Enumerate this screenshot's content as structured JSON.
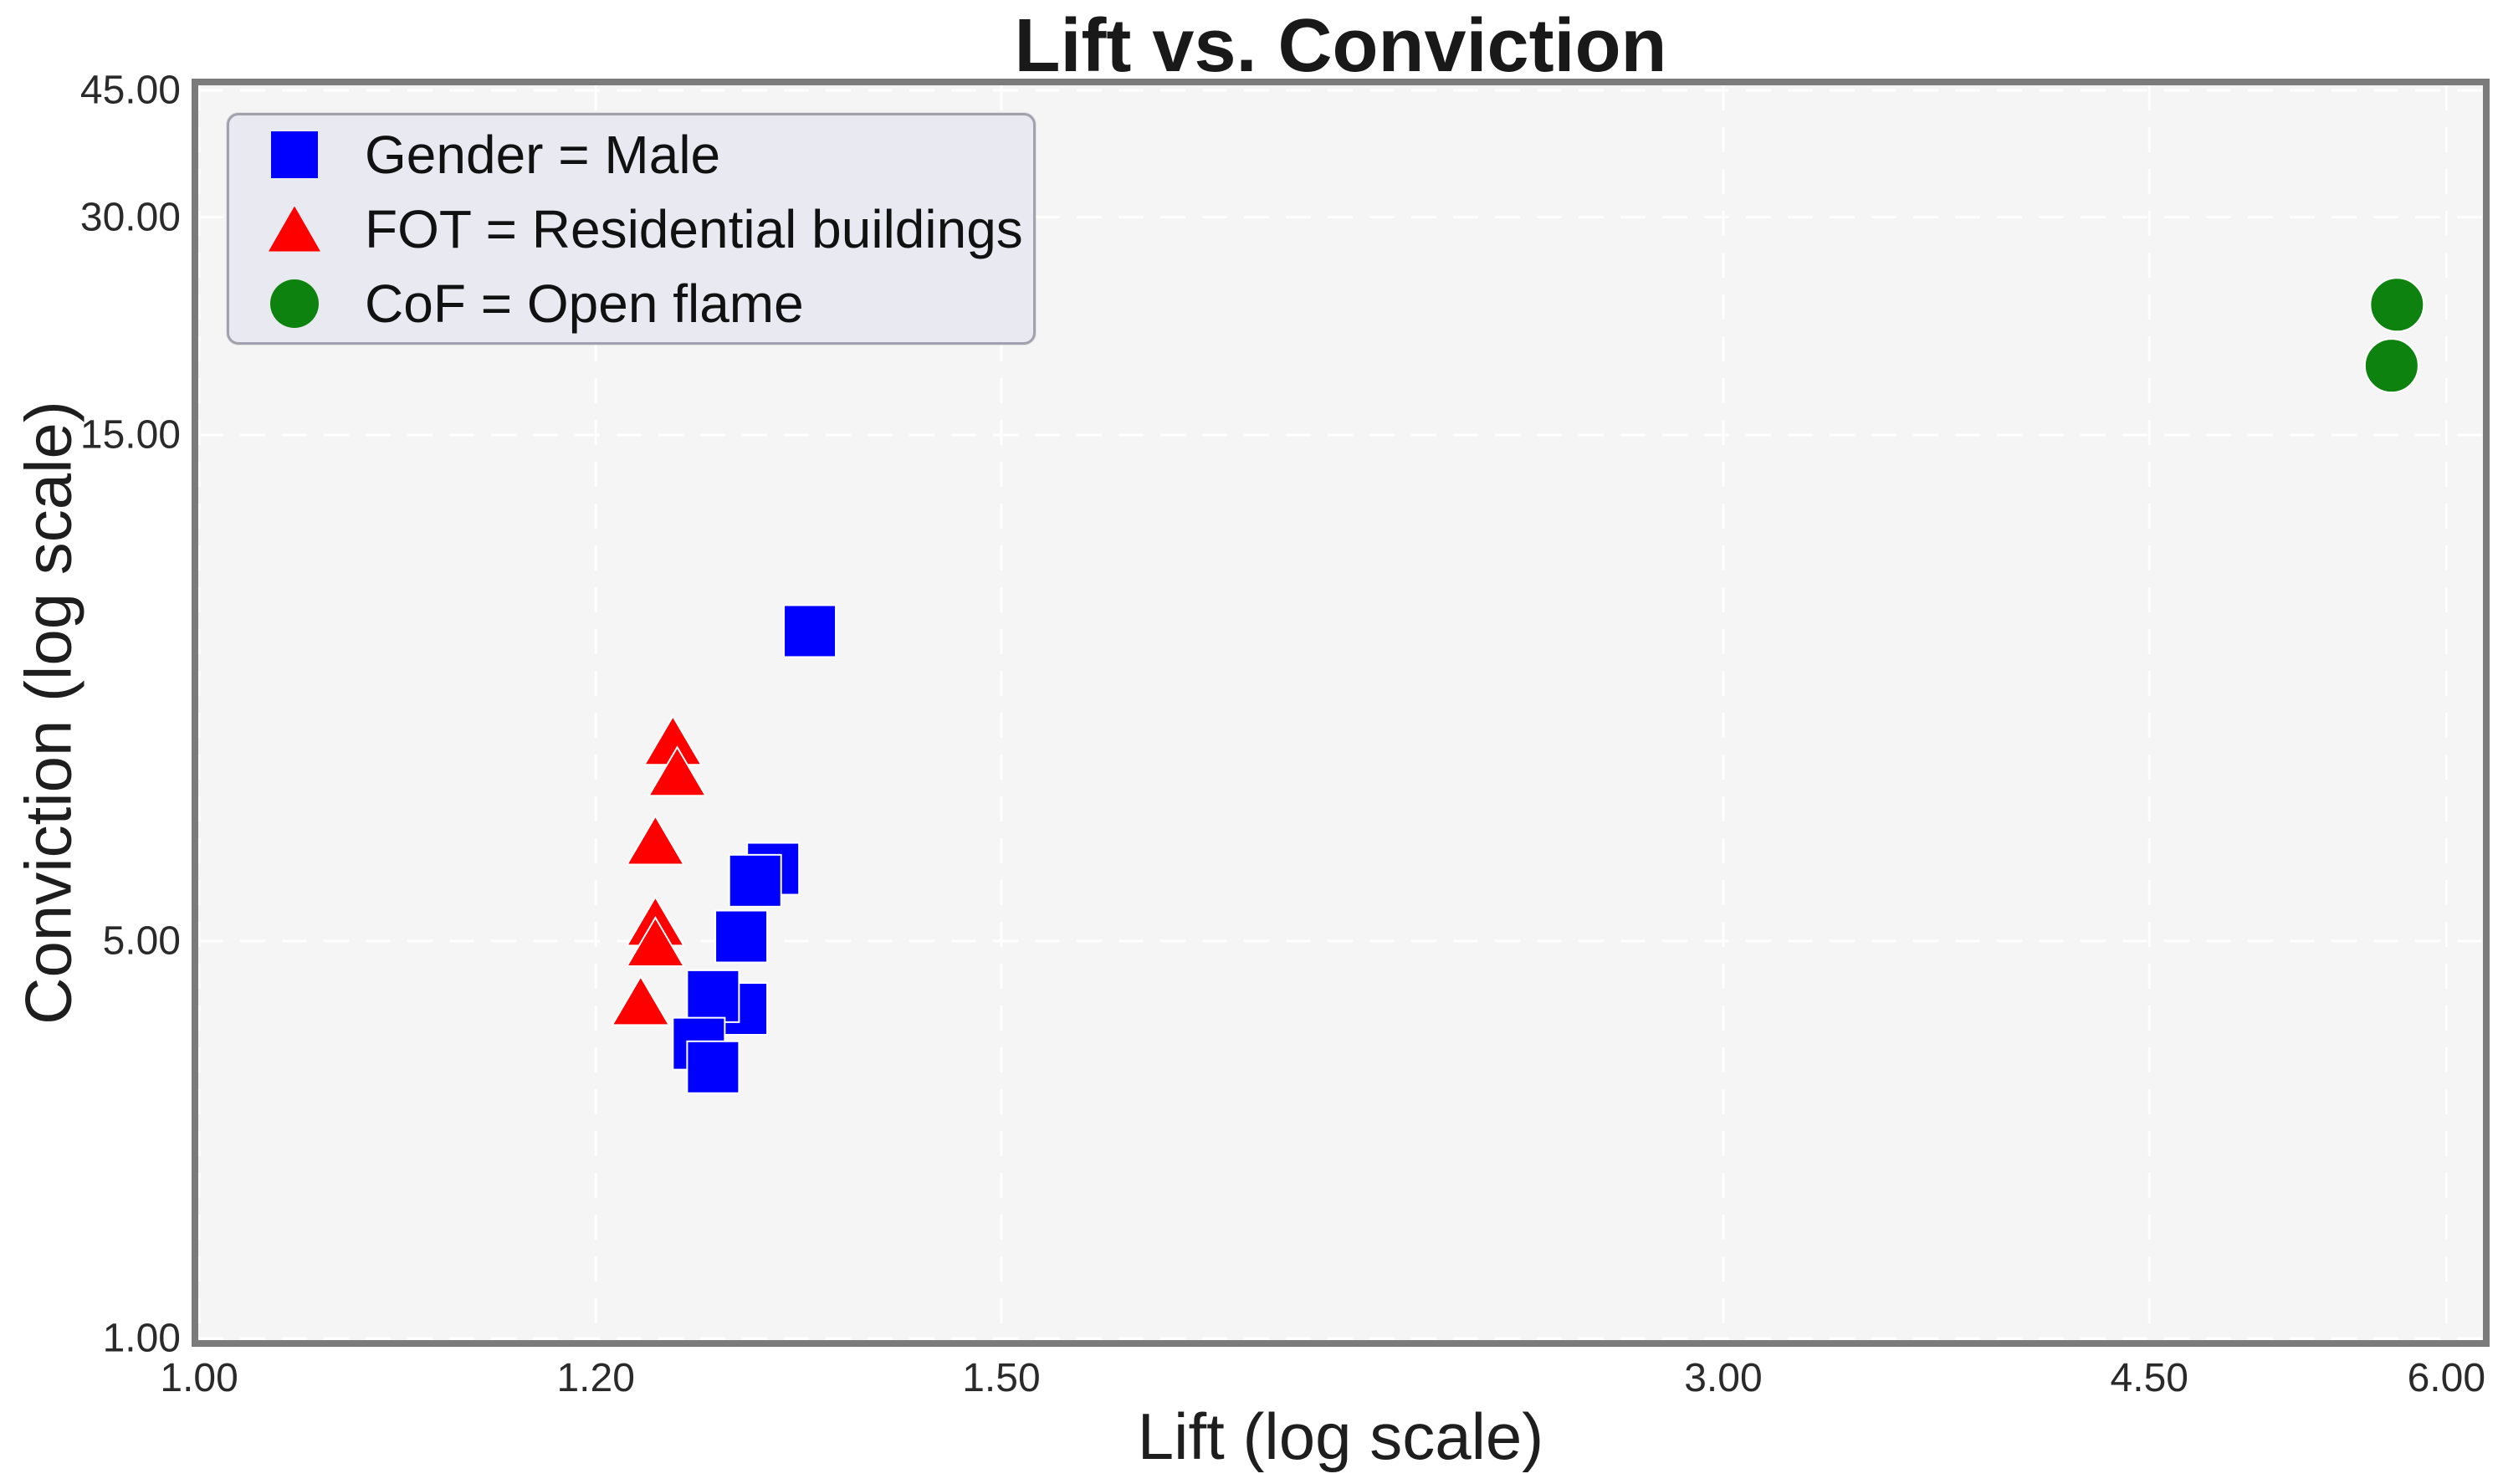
{
  "figure": {
    "title": "Lift vs. Conviction",
    "x_axis_label": "Lift (log scale)",
    "y_axis_label": "Conviction (log scale)"
  },
  "legend": {
    "items": [
      {
        "label": "Gender = Male",
        "marker": "square",
        "color": "#0000ff"
      },
      {
        "label": "FOT = Residential buildings",
        "marker": "triangle-up",
        "color": "#ff0000"
      },
      {
        "label": "CoF = Open flame",
        "marker": "circle",
        "color": "#0e820e"
      }
    ]
  },
  "chart_data": {
    "type": "scatter",
    "title": "Lift vs. Conviction",
    "xlabel": "Lift (log scale)",
    "ylabel": "Conviction (log scale)",
    "x_scale": "log",
    "y_scale": "log",
    "grid": true,
    "grid_color": "#ffffff",
    "plot_background": "#f5f5f6",
    "legend_position": "upper left",
    "x_ticks": [
      {
        "value": 1.0,
        "label": "1.00"
      },
      {
        "value": 1.2,
        "label": "1.20"
      },
      {
        "value": 1.5,
        "label": "1.50"
      },
      {
        "value": 3.0,
        "label": "3.00"
      },
      {
        "value": 4.5,
        "label": "4.50"
      },
      {
        "value": 6.0,
        "label": "6.00"
      }
    ],
    "y_ticks": [
      {
        "value": 45,
        "label": "45.00"
      },
      {
        "value": 30,
        "label": "30.00"
      },
      {
        "value": 15,
        "label": "15.00"
      },
      {
        "value": 5,
        "label": "5.00"
      },
      {
        "value": 1,
        "label": "1.00"
      }
    ],
    "series": [
      {
        "name": "Gender = Male",
        "marker": "square",
        "color": "#0000ff",
        "points": [
          {
            "lift": 1.35,
            "conviction": 9.8
          },
          {
            "lift": 1.323,
            "conviction": 5.85
          },
          {
            "lift": 1.31,
            "conviction": 5.7
          },
          {
            "lift": 1.3,
            "conviction": 5.05
          },
          {
            "lift": 1.3,
            "conviction": 3.8
          },
          {
            "lift": 1.28,
            "conviction": 4.0
          },
          {
            "lift": 1.27,
            "conviction": 3.3
          },
          {
            "lift": 1.28,
            "conviction": 3.0
          }
        ]
      },
      {
        "name": "FOT = Residential buildings",
        "marker": "triangle-up",
        "color": "#ff0000",
        "points": [
          {
            "lift": 1.252,
            "conviction": 7.7
          },
          {
            "lift": 1.255,
            "conviction": 7.2
          },
          {
            "lift": 1.24,
            "conviction": 6.2
          },
          {
            "lift": 1.24,
            "conviction": 5.2
          },
          {
            "lift": 1.24,
            "conviction": 4.95
          },
          {
            "lift": 1.23,
            "conviction": 3.9
          }
        ]
      },
      {
        "name": "CoF = Open flame",
        "marker": "circle",
        "color": "#0e820e",
        "points": [
          {
            "lift": 5.72,
            "conviction": 22.7
          },
          {
            "lift": 5.69,
            "conviction": 18.7
          }
        ]
      }
    ]
  }
}
